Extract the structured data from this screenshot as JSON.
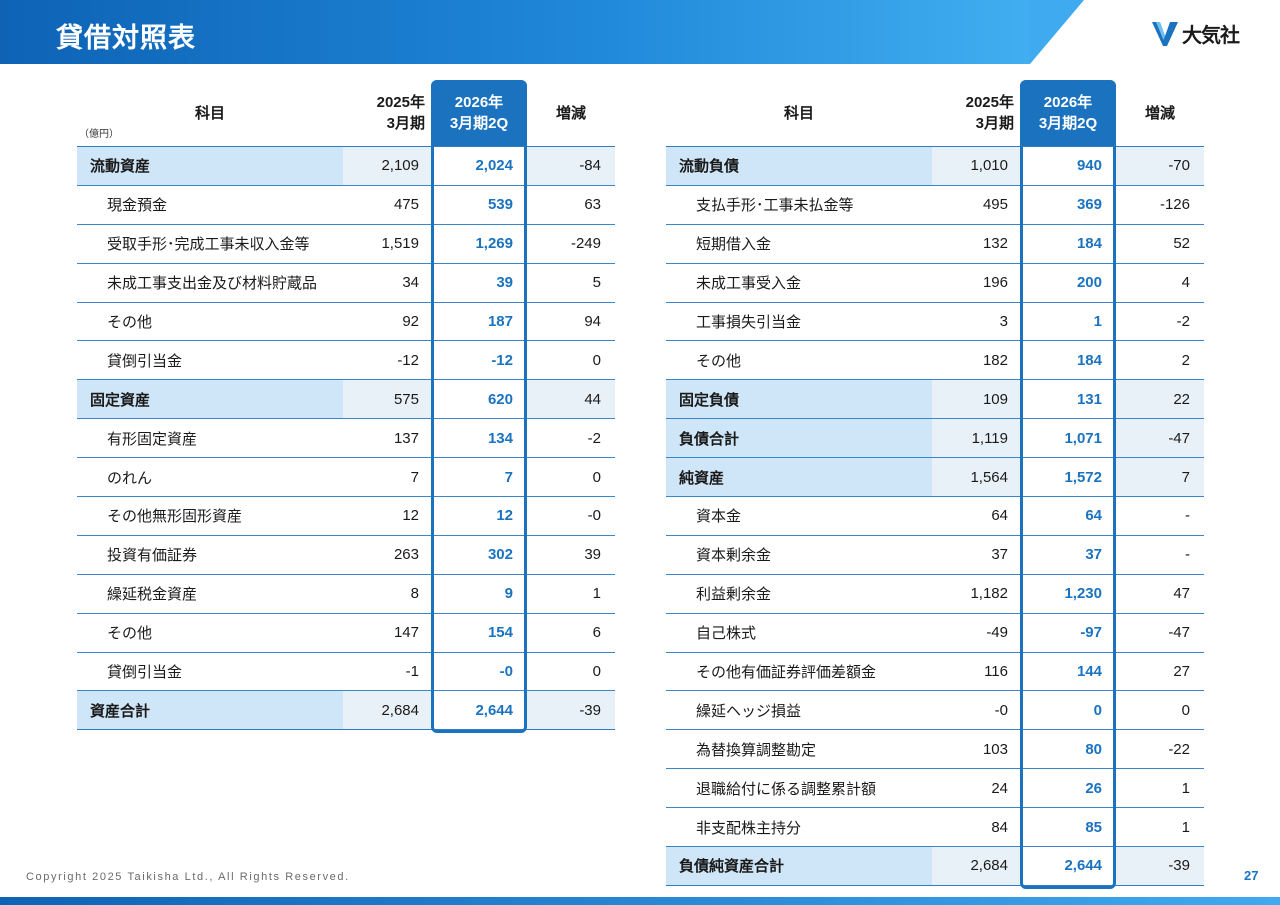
{
  "page": {
    "title": "貸借対照表",
    "logo_text": "大気社",
    "copyright": "Copyright  2025 Taikisha Ltd., All Rights Reserved.",
    "page_number": "27",
    "accent_color": "#1b73c0"
  },
  "assets_table": {
    "headers": {
      "item": "科目",
      "prev_line1": "2025年",
      "prev_line2": "3月期",
      "cur_line1": "2026年",
      "cur_line2": "3月期2Q",
      "diff": "増減"
    },
    "unit": "（億円）",
    "rows": [
      {
        "label": "流動資産",
        "prev": "2,109",
        "cur": "2,024",
        "diff": "-84",
        "is_total": true
      },
      {
        "label": "現金預金",
        "prev": "475",
        "cur": "539",
        "diff": "63",
        "is_total": false
      },
      {
        "label": "受取手形･完成工事未収入金等",
        "prev": "1,519",
        "cur": "1,269",
        "diff": "-249",
        "is_total": false
      },
      {
        "label": "未成工事支出金及び材料貯蔵品",
        "prev": "34",
        "cur": "39",
        "diff": "5",
        "is_total": false
      },
      {
        "label": "その他",
        "prev": "92",
        "cur": "187",
        "diff": "94",
        "is_total": false
      },
      {
        "label": "貸倒引当金",
        "prev": "-12",
        "cur": "-12",
        "diff": "0",
        "is_total": false
      },
      {
        "label": "固定資産",
        "prev": "575",
        "cur": "620",
        "diff": "44",
        "is_total": true
      },
      {
        "label": "有形固定資産",
        "prev": "137",
        "cur": "134",
        "diff": "-2",
        "is_total": false
      },
      {
        "label": "のれん",
        "prev": "7",
        "cur": "7",
        "diff": "0",
        "is_total": false
      },
      {
        "label": "その他無形固形資産",
        "prev": "12",
        "cur": "12",
        "diff": "-0",
        "is_total": false
      },
      {
        "label": "投資有価証券",
        "prev": "263",
        "cur": "302",
        "diff": "39",
        "is_total": false
      },
      {
        "label": "繰延税金資産",
        "prev": "8",
        "cur": "9",
        "diff": "1",
        "is_total": false
      },
      {
        "label": "その他",
        "prev": "147",
        "cur": "154",
        "diff": "6",
        "is_total": false
      },
      {
        "label": "貸倒引当金",
        "prev": "-1",
        "cur": "-0",
        "diff": "0",
        "is_total": false
      },
      {
        "label": "資産合計",
        "prev": "2,684",
        "cur": "2,644",
        "diff": "-39",
        "is_total": true
      }
    ]
  },
  "liabilities_table": {
    "headers": {
      "item": "科目",
      "prev_line1": "2025年",
      "prev_line2": "3月期",
      "cur_line1": "2026年",
      "cur_line2": "3月期2Q",
      "diff": "増減"
    },
    "rows": [
      {
        "label": "流動負債",
        "prev": "1,010",
        "cur": "940",
        "diff": "-70",
        "is_total": true
      },
      {
        "label": "支払手形･工事未払金等",
        "prev": "495",
        "cur": "369",
        "diff": "-126",
        "is_total": false
      },
      {
        "label": "短期借入金",
        "prev": "132",
        "cur": "184",
        "diff": "52",
        "is_total": false
      },
      {
        "label": "未成工事受入金",
        "prev": "196",
        "cur": "200",
        "diff": "4",
        "is_total": false
      },
      {
        "label": "工事損失引当金",
        "prev": "3",
        "cur": "1",
        "diff": "-2",
        "is_total": false
      },
      {
        "label": "その他",
        "prev": "182",
        "cur": "184",
        "diff": "2",
        "is_total": false
      },
      {
        "label": "固定負債",
        "prev": "109",
        "cur": "131",
        "diff": "22",
        "is_total": true
      },
      {
        "label": "負債合計",
        "prev": "1,119",
        "cur": "1,071",
        "diff": "-47",
        "is_total": true
      },
      {
        "label": "純資産",
        "prev": "1,564",
        "cur": "1,572",
        "diff": "7",
        "is_total": true
      },
      {
        "label": "資本金",
        "prev": "64",
        "cur": "64",
        "diff": "-",
        "is_total": false
      },
      {
        "label": "資本剰余金",
        "prev": "37",
        "cur": "37",
        "diff": "-",
        "is_total": false
      },
      {
        "label": "利益剰余金",
        "prev": "1,182",
        "cur": "1,230",
        "diff": "47",
        "is_total": false
      },
      {
        "label": "自己株式",
        "prev": "-49",
        "cur": "-97",
        "diff": "-47",
        "is_total": false
      },
      {
        "label": "その他有価証券評価差額金",
        "prev": "116",
        "cur": "144",
        "diff": "27",
        "is_total": false
      },
      {
        "label": "繰延ヘッジ損益",
        "prev": "-0",
        "cur": "0",
        "diff": "0",
        "is_total": false
      },
      {
        "label": "為替換算調整勘定",
        "prev": "103",
        "cur": "80",
        "diff": "-22",
        "is_total": false
      },
      {
        "label": "退職給付に係る調整累計額",
        "prev": "24",
        "cur": "26",
        "diff": "1",
        "is_total": false
      },
      {
        "label": "非支配株主持分",
        "prev": "84",
        "cur": "85",
        "diff": "1",
        "is_total": false
      },
      {
        "label": "負債純資産合計",
        "prev": "2,684",
        "cur": "2,644",
        "diff": "-39",
        "is_total": true
      }
    ]
  }
}
